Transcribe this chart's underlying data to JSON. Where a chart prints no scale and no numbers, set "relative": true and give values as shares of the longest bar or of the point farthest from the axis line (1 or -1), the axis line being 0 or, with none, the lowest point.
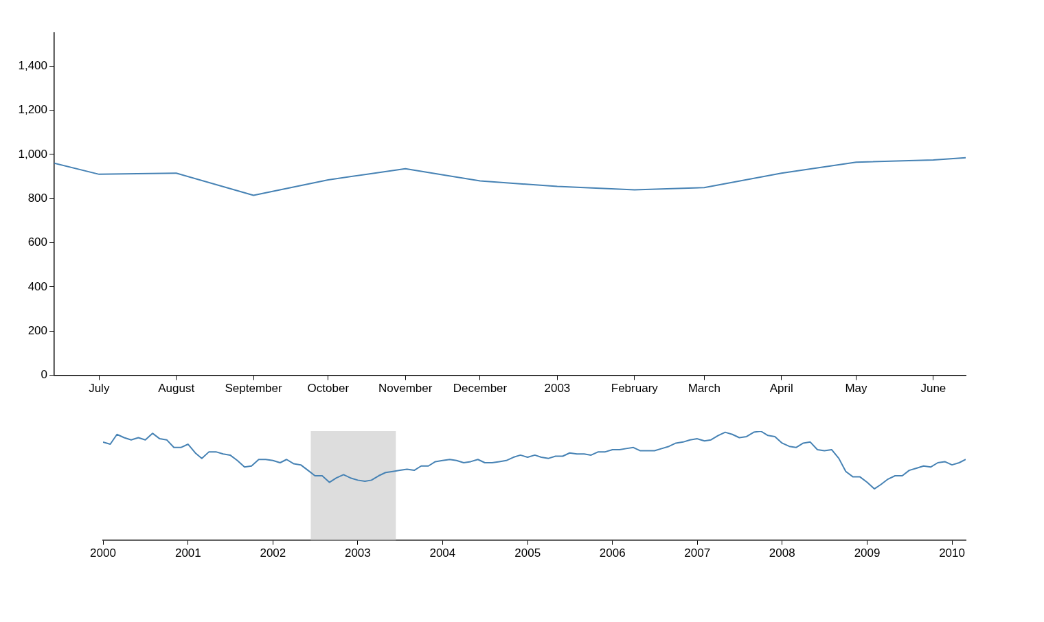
{
  "chart_data": [
    {
      "type": "line",
      "x": [
        "2002-06-13",
        "2002-07",
        "2002-08",
        "2002-09",
        "2002-10",
        "2002-11",
        "2002-12",
        "2003-01",
        "2003-02",
        "2003-03",
        "2003-04",
        "2003-05",
        "2003-06",
        "2003-06-14"
      ],
      "series": [
        {
          "color": "#4682b4",
          "values": [
            960,
            910,
            915,
            815,
            885,
            935,
            880,
            855,
            840,
            850,
            915,
            965,
            975,
            985
          ]
        }
      ],
      "xlim": [
        "2002-06-13",
        "2003-06-14"
      ],
      "xticks": [
        {
          "value": "2002-07",
          "label": "July"
        },
        {
          "value": "2002-08",
          "label": "August"
        },
        {
          "value": "2002-09",
          "label": "September"
        },
        {
          "value": "2002-10",
          "label": "October"
        },
        {
          "value": "2002-11",
          "label": "November"
        },
        {
          "value": "2002-12",
          "label": "December"
        },
        {
          "value": "2003-01",
          "label": "2003"
        },
        {
          "value": "2003-02",
          "label": "February"
        },
        {
          "value": "2003-03",
          "label": "March"
        },
        {
          "value": "2003-04",
          "label": "April"
        },
        {
          "value": "2003-05",
          "label": "May"
        },
        {
          "value": "2003-06",
          "label": "June"
        }
      ],
      "ylim": [
        0,
        1550
      ],
      "yticks": [
        0,
        {
          "value": 200,
          "label": "200"
        },
        {
          "value": 400,
          "label": "400"
        },
        {
          "value": 600,
          "label": "600"
        },
        {
          "value": 800,
          "label": "800"
        },
        {
          "value": 1000,
          "label": "1,000"
        },
        {
          "value": 1200,
          "label": "1,200"
        },
        {
          "value": 1400,
          "label": "1,400"
        }
      ],
      "marker": "none",
      "grid": false
    },
    {
      "type": "line",
      "relative": true,
      "x": [
        "2000-01",
        "2000-02",
        "2000-03",
        "2000-04",
        "2000-05",
        "2000-06",
        "2000-07",
        "2000-08",
        "2000-09",
        "2000-10",
        "2000-11",
        "2000-12",
        "2001-01",
        "2001-02",
        "2001-03",
        "2001-04",
        "2001-05",
        "2001-06",
        "2001-07",
        "2001-08",
        "2001-09",
        "2001-10",
        "2001-11",
        "2001-12",
        "2002-01",
        "2002-02",
        "2002-03",
        "2002-04",
        "2002-05",
        "2002-06",
        "2002-07",
        "2002-08",
        "2002-09",
        "2002-10",
        "2002-11",
        "2002-12",
        "2003-01",
        "2003-02",
        "2003-03",
        "2003-04",
        "2003-05",
        "2003-06",
        "2003-07",
        "2003-08",
        "2003-09",
        "2003-10",
        "2003-11",
        "2003-12",
        "2004-01",
        "2004-02",
        "2004-03",
        "2004-04",
        "2004-05",
        "2004-06",
        "2004-07",
        "2004-08",
        "2004-09",
        "2004-10",
        "2004-11",
        "2004-12",
        "2005-01",
        "2005-02",
        "2005-03",
        "2005-04",
        "2005-05",
        "2005-06",
        "2005-07",
        "2005-08",
        "2005-09",
        "2005-10",
        "2005-11",
        "2005-12",
        "2006-01",
        "2006-02",
        "2006-03",
        "2006-04",
        "2006-05",
        "2006-06",
        "2006-07",
        "2006-08",
        "2006-09",
        "2006-10",
        "2006-11",
        "2006-12",
        "2007-01",
        "2007-02",
        "2007-03",
        "2007-04",
        "2007-05",
        "2007-06",
        "2007-07",
        "2007-08",
        "2007-09",
        "2007-10",
        "2007-11",
        "2007-12",
        "2008-01",
        "2008-02",
        "2008-03",
        "2008-04",
        "2008-05",
        "2008-06",
        "2008-07",
        "2008-08",
        "2008-09",
        "2008-10",
        "2008-11",
        "2008-12",
        "2009-01",
        "2009-02",
        "2009-03",
        "2009-04",
        "2009-05",
        "2009-06",
        "2009-07",
        "2009-08",
        "2009-09",
        "2009-10",
        "2009-11",
        "2009-12",
        "2010-01",
        "2010-02",
        "2010-03"
      ],
      "series": [
        {
          "color": "#4682b4",
          "values": [
            0.9,
            0.88,
            0.97,
            0.94,
            0.92,
            0.94,
            0.92,
            0.98,
            0.93,
            0.92,
            0.85,
            0.85,
            0.88,
            0.8,
            0.75,
            0.81,
            0.81,
            0.79,
            0.78,
            0.73,
            0.67,
            0.68,
            0.74,
            0.74,
            0.73,
            0.71,
            0.74,
            0.7,
            0.69,
            0.64,
            0.59,
            0.59,
            0.53,
            0.57,
            0.6,
            0.57,
            0.55,
            0.54,
            0.55,
            0.59,
            0.62,
            0.63,
            0.64,
            0.65,
            0.64,
            0.68,
            0.68,
            0.72,
            0.73,
            0.74,
            0.73,
            0.71,
            0.72,
            0.74,
            0.71,
            0.71,
            0.72,
            0.73,
            0.76,
            0.78,
            0.76,
            0.78,
            0.76,
            0.75,
            0.77,
            0.77,
            0.8,
            0.79,
            0.79,
            0.78,
            0.81,
            0.81,
            0.83,
            0.83,
            0.84,
            0.85,
            0.82,
            0.82,
            0.82,
            0.84,
            0.86,
            0.89,
            0.9,
            0.92,
            0.93,
            0.91,
            0.92,
            0.96,
            0.99,
            0.97,
            0.94,
            0.95,
            0.99,
            1,
            0.96,
            0.95,
            0.89,
            0.86,
            0.85,
            0.89,
            0.9,
            0.83,
            0.82,
            0.83,
            0.75,
            0.63,
            0.58,
            0.58,
            0.53,
            0.47,
            0.51,
            0.56,
            0.59,
            0.59,
            0.64,
            0.66,
            0.68,
            0.67,
            0.71,
            0.72,
            0.69,
            0.71,
            0.74
          ]
        }
      ],
      "xlim": [
        "2000-01-01",
        "2010-03-01"
      ],
      "xticks": [
        "2000",
        "2001",
        "2002",
        "2003",
        "2004",
        "2005",
        "2006",
        "2007",
        "2008",
        "2009",
        "2010"
      ],
      "bands": [
        {
          "axis": "x",
          "from": "2002-06-13",
          "to": "2003-06-14",
          "color": "#dddddd"
        }
      ],
      "marker": "none",
      "grid": false
    }
  ]
}
